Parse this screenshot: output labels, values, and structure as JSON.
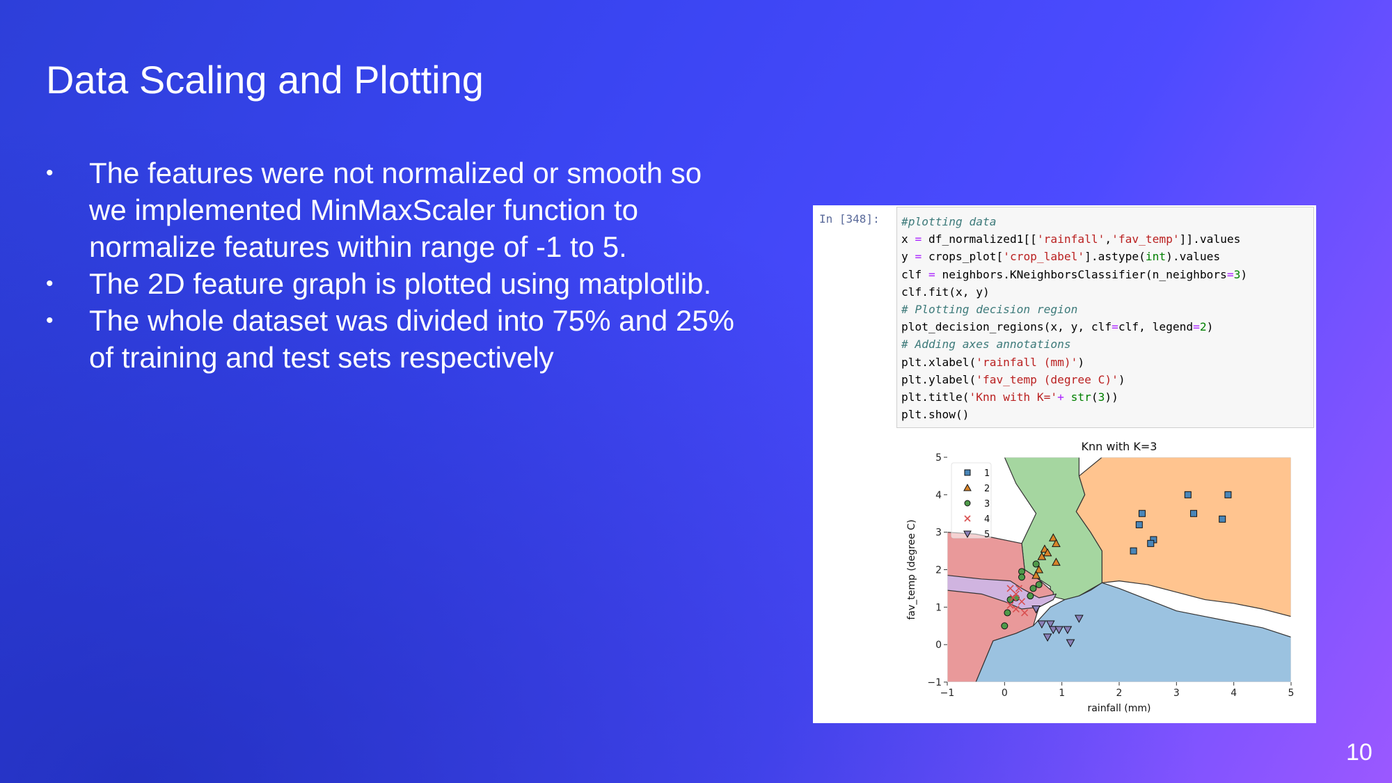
{
  "slide": {
    "title": "Data Scaling and Plotting",
    "bullets": [
      "The features were not normalized or smooth so we implemented MinMaxScaler function to normalize features within range of -1 to 5.",
      "The 2D feature graph is plotted using matplotlib.",
      "The whole dataset was divided into 75% and 25% of training and test sets respectively"
    ],
    "bullet_symbol": "•",
    "page_number": "10"
  },
  "notebook": {
    "prompt": "In [348]:",
    "code_lines": [
      [
        {
          "t": "#plotting data",
          "c": "cm"
        }
      ],
      [
        {
          "t": "x "
        },
        {
          "t": "=",
          "c": "op"
        },
        {
          "t": " df_normalized1[["
        },
        {
          "t": "'rainfall'",
          "c": "st"
        },
        {
          "t": ","
        },
        {
          "t": "'fav_temp'",
          "c": "st"
        },
        {
          "t": "]].values"
        }
      ],
      [
        {
          "t": "y "
        },
        {
          "t": "=",
          "c": "op"
        },
        {
          "t": " crops_plot["
        },
        {
          "t": "'crop_label'",
          "c": "st"
        },
        {
          "t": "].astype("
        },
        {
          "t": "int",
          "c": "bi"
        },
        {
          "t": ").values"
        }
      ],
      [
        {
          "t": "clf "
        },
        {
          "t": "=",
          "c": "op"
        },
        {
          "t": " neighbors.KNeighborsClassifier(n_neighbors"
        },
        {
          "t": "=",
          "c": "op"
        },
        {
          "t": "3",
          "c": "nu"
        },
        {
          "t": ")"
        }
      ],
      [
        {
          "t": "clf.fit(x, y)"
        }
      ],
      [
        {
          "t": "# Plotting decision region",
          "c": "cm"
        }
      ],
      [
        {
          "t": "plot_decision_regions(x, y, clf"
        },
        {
          "t": "=",
          "c": "op"
        },
        {
          "t": "clf, legend"
        },
        {
          "t": "=",
          "c": "op"
        },
        {
          "t": "2",
          "c": "nu"
        },
        {
          "t": ")"
        }
      ],
      [
        {
          "t": "# Adding axes annotations",
          "c": "cm"
        }
      ],
      [
        {
          "t": "plt.xlabel("
        },
        {
          "t": "'rainfall (mm)'",
          "c": "st"
        },
        {
          "t": ")"
        }
      ],
      [
        {
          "t": "plt.ylabel("
        },
        {
          "t": "'fav_temp (degree C)'",
          "c": "st"
        },
        {
          "t": ")"
        }
      ],
      [
        {
          "t": "plt.title("
        },
        {
          "t": "'Knn with K='",
          "c": "st"
        },
        {
          "t": "+",
          "c": "op"
        },
        {
          "t": " "
        },
        {
          "t": "str",
          "c": "bi"
        },
        {
          "t": "("
        },
        {
          "t": "3",
          "c": "nu"
        },
        {
          "t": "))"
        }
      ],
      [
        {
          "t": "plt.show()"
        }
      ]
    ]
  },
  "chart_data": {
    "type": "scatter",
    "title": "Knn with K=3",
    "xlabel": "rainfall (mm)",
    "ylabel": "fav_temp (degree C)",
    "xlim": [
      -1,
      5
    ],
    "ylim": [
      -1,
      5
    ],
    "xticks": [
      -1,
      0,
      1,
      2,
      3,
      4,
      5
    ],
    "yticks": [
      -1,
      0,
      1,
      2,
      3,
      4,
      5
    ],
    "xtick_labels": [
      "−1",
      "0",
      "1",
      "2",
      "3",
      "4",
      "5"
    ],
    "ytick_labels": [
      "−1",
      "0",
      "1",
      "2",
      "3",
      "4",
      "5"
    ],
    "legend_position": "top-left",
    "regions": [
      {
        "class": "1",
        "color": "#ffc48f",
        "polygon": [
          [
            1.7,
            5
          ],
          [
            5,
            5
          ],
          [
            5,
            0.75
          ],
          [
            4.5,
            0.95
          ],
          [
            4,
            1.1
          ],
          [
            3.5,
            1.2
          ],
          [
            3,
            1.4
          ],
          [
            2.5,
            1.6
          ],
          [
            2,
            1.7
          ],
          [
            1.7,
            1.65
          ],
          [
            1.7,
            2.5
          ],
          [
            1.5,
            3
          ],
          [
            1.25,
            3.55
          ],
          [
            1.4,
            4
          ],
          [
            1.3,
            4.5
          ]
        ]
      },
      {
        "class": "2",
        "color": "#a5d6a0",
        "polygon": [
          [
            0,
            5
          ],
          [
            1.3,
            5
          ],
          [
            1.3,
            4.5
          ],
          [
            1.4,
            4
          ],
          [
            1.25,
            3.55
          ],
          [
            1.5,
            3
          ],
          [
            1.7,
            2.5
          ],
          [
            1.7,
            1.65
          ],
          [
            1.3,
            1.3
          ],
          [
            1.05,
            1.2
          ],
          [
            0.8,
            1.3
          ],
          [
            0.8,
            1.55
          ],
          [
            0.55,
            1.8
          ],
          [
            0.35,
            2.0
          ],
          [
            0.3,
            2.7
          ],
          [
            0.55,
            3.5
          ],
          [
            0.2,
            4.3
          ]
        ]
      },
      {
        "class": "3",
        "color": "#e9999a",
        "polygon": [
          [
            -1,
            3
          ],
          [
            -0.5,
            2.95
          ],
          [
            0.3,
            2.7
          ],
          [
            0.35,
            2.0
          ],
          [
            0.55,
            1.8
          ],
          [
            0.85,
            1.4
          ],
          [
            0.85,
            1.2
          ],
          [
            0.6,
            1.0
          ],
          [
            0.5,
            0.5
          ],
          [
            0.2,
            0.3
          ],
          [
            -0.2,
            0.1
          ],
          [
            -0.5,
            -1
          ],
          [
            -1,
            -1
          ]
        ]
      },
      {
        "class": "4",
        "color": "#d0b4e0",
        "polygon": [
          [
            -1,
            1.85
          ],
          [
            -0.4,
            1.75
          ],
          [
            0.1,
            1.7
          ],
          [
            0.3,
            1.5
          ],
          [
            0.6,
            1.25
          ],
          [
            0.9,
            1.35
          ],
          [
            0.85,
            1.2
          ],
          [
            0.6,
            1.0
          ],
          [
            0.3,
            0.95
          ],
          [
            0,
            1.15
          ],
          [
            -0.4,
            1.35
          ],
          [
            -1,
            1.45
          ]
        ]
      },
      {
        "class": "5",
        "color": "#9bc2e0",
        "polygon": [
          [
            -0.5,
            -1
          ],
          [
            5,
            -1
          ],
          [
            5,
            0.2
          ],
          [
            4.5,
            0.45
          ],
          [
            4,
            0.6
          ],
          [
            3.5,
            0.75
          ],
          [
            3,
            0.9
          ],
          [
            2.5,
            1.2
          ],
          [
            2,
            1.5
          ],
          [
            1.7,
            1.65
          ],
          [
            1.5,
            1.45
          ],
          [
            1.3,
            1.3
          ],
          [
            1.05,
            1.2
          ],
          [
            0.8,
            1.0
          ],
          [
            0.5,
            0.5
          ],
          [
            0.2,
            0.3
          ],
          [
            -0.2,
            0.1
          ]
        ]
      }
    ],
    "series": [
      {
        "name": "1",
        "marker": "square",
        "color": "#4a86b8",
        "points": [
          [
            3.2,
            4.0
          ],
          [
            3.9,
            4.0
          ],
          [
            2.4,
            3.5
          ],
          [
            3.3,
            3.5
          ],
          [
            3.8,
            3.35
          ],
          [
            2.35,
            3.2
          ],
          [
            2.6,
            2.8
          ],
          [
            2.55,
            2.7
          ],
          [
            2.25,
            2.5
          ]
        ]
      },
      {
        "name": "2",
        "marker": "triangle",
        "color": "#d8842a",
        "points": [
          [
            0.85,
            2.85
          ],
          [
            0.9,
            2.7
          ],
          [
            0.7,
            2.55
          ],
          [
            0.75,
            2.45
          ],
          [
            0.65,
            2.35
          ],
          [
            0.9,
            2.2
          ],
          [
            0.6,
            2.0
          ],
          [
            0.55,
            1.85
          ]
        ]
      },
      {
        "name": "3",
        "marker": "circle",
        "color": "#4f9a4a",
        "points": [
          [
            0.55,
            2.15
          ],
          [
            0.3,
            1.95
          ],
          [
            0.3,
            1.8
          ],
          [
            0.6,
            1.6
          ],
          [
            0.5,
            1.5
          ],
          [
            0.45,
            1.3
          ],
          [
            0.2,
            1.25
          ],
          [
            0.1,
            1.2
          ],
          [
            0.05,
            0.85
          ],
          [
            0,
            0.5
          ]
        ]
      },
      {
        "name": "4",
        "marker": "x",
        "color": "#d94f4f",
        "points": [
          [
            0.1,
            1.5
          ],
          [
            0.25,
            1.5
          ],
          [
            0.2,
            1.35
          ],
          [
            0.15,
            1.25
          ],
          [
            0.3,
            1.15
          ],
          [
            0.1,
            1.05
          ],
          [
            0.2,
            0.95
          ],
          [
            0.35,
            0.85
          ]
        ]
      },
      {
        "name": "5",
        "marker": "triangle-down",
        "color": "#8a80b8",
        "points": [
          [
            0.55,
            0.95
          ],
          [
            1.3,
            0.7
          ],
          [
            0.65,
            0.55
          ],
          [
            0.8,
            0.55
          ],
          [
            0.85,
            0.4
          ],
          [
            0.95,
            0.4
          ],
          [
            1.1,
            0.4
          ],
          [
            0.75,
            0.2
          ],
          [
            1.15,
            0.05
          ]
        ]
      }
    ]
  }
}
